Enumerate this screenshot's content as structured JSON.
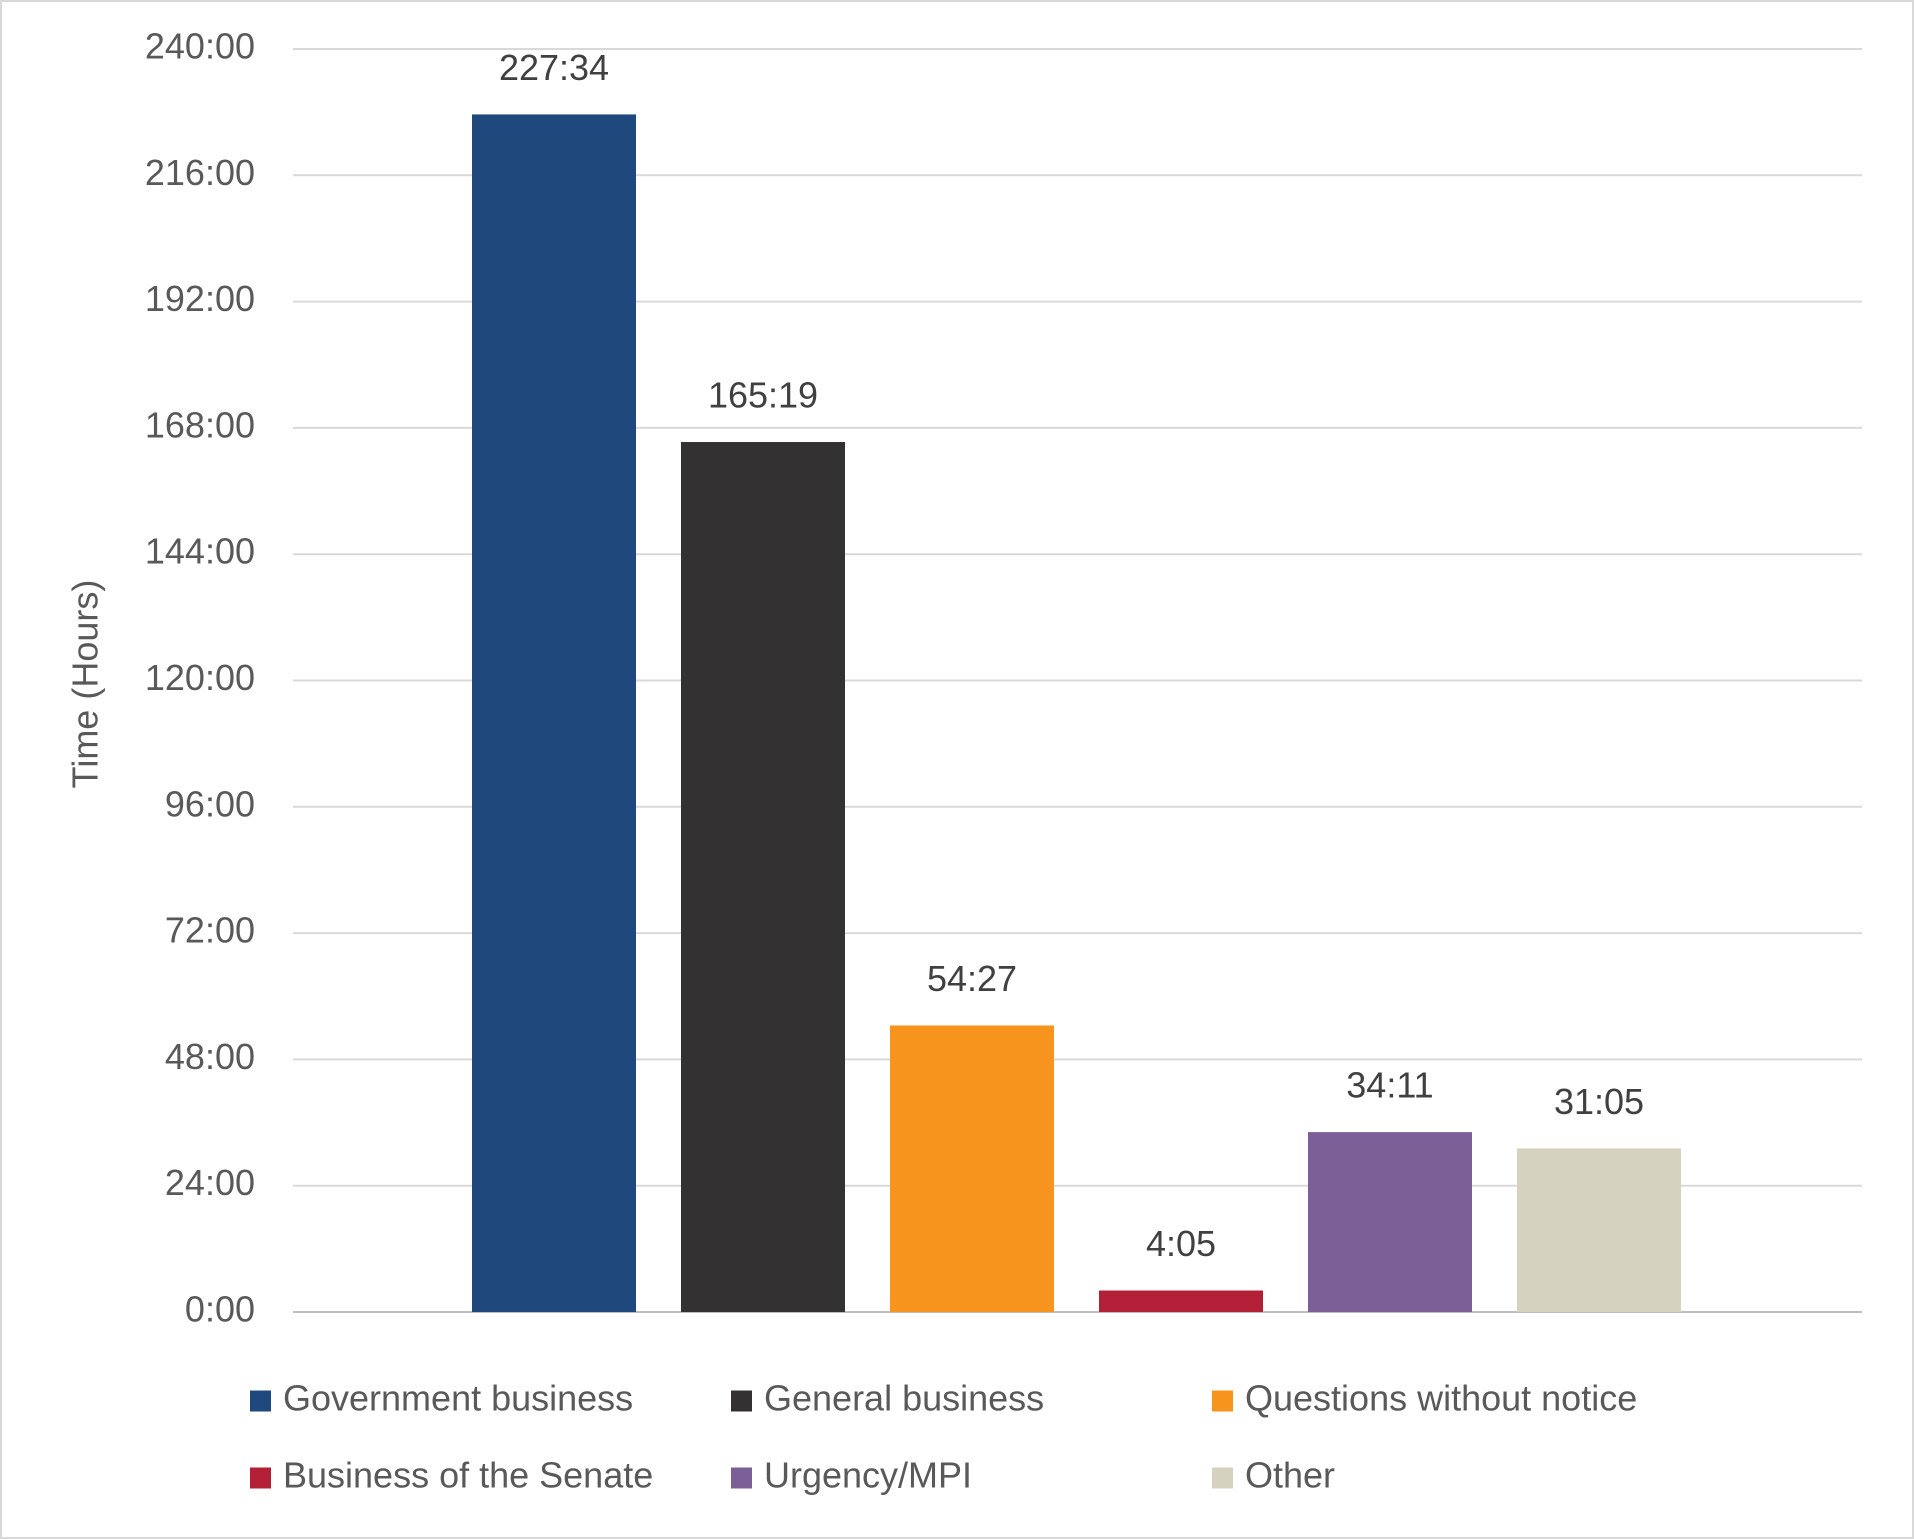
{
  "chart_data": {
    "type": "bar",
    "y_label": "Time (Hours)",
    "ylim": [
      0,
      240
    ],
    "yticks": [
      {
        "value": 0,
        "label": "0:00"
      },
      {
        "value": 24,
        "label": "24:00"
      },
      {
        "value": 48,
        "label": "48:00"
      },
      {
        "value": 72,
        "label": "72:00"
      },
      {
        "value": 96,
        "label": "96:00"
      },
      {
        "value": 120,
        "label": "120:00"
      },
      {
        "value": 144,
        "label": "144:00"
      },
      {
        "value": 168,
        "label": "168:00"
      },
      {
        "value": 192,
        "label": "192:00"
      },
      {
        "value": 216,
        "label": "216:00"
      },
      {
        "value": 240,
        "label": "240:00"
      }
    ],
    "grid": true,
    "legend": "bottom",
    "series": [
      {
        "name": "Government business",
        "color": "#1f497d",
        "values": [
          227.56667
        ],
        "value_labels": [
          "227:34"
        ]
      },
      {
        "name": "General business",
        "color": "#333132",
        "values": [
          165.31667
        ],
        "value_labels": [
          "165:19"
        ]
      },
      {
        "name": "Questions without notice",
        "color": "#f7941d",
        "values": [
          54.45
        ],
        "value_labels": [
          "54:27"
        ]
      },
      {
        "name": "Business of the Senate",
        "color": "#b21f36",
        "values": [
          4.08333
        ],
        "value_labels": [
          "4:05"
        ]
      },
      {
        "name": "Urgency/MPI",
        "color": "#7b5f96",
        "values": [
          34.18333
        ],
        "value_labels": [
          "34:11"
        ]
      },
      {
        "name": "Other",
        "color": "#d5d2bf",
        "values": [
          31.08333
        ],
        "value_labels": [
          "31:05"
        ]
      }
    ]
  }
}
